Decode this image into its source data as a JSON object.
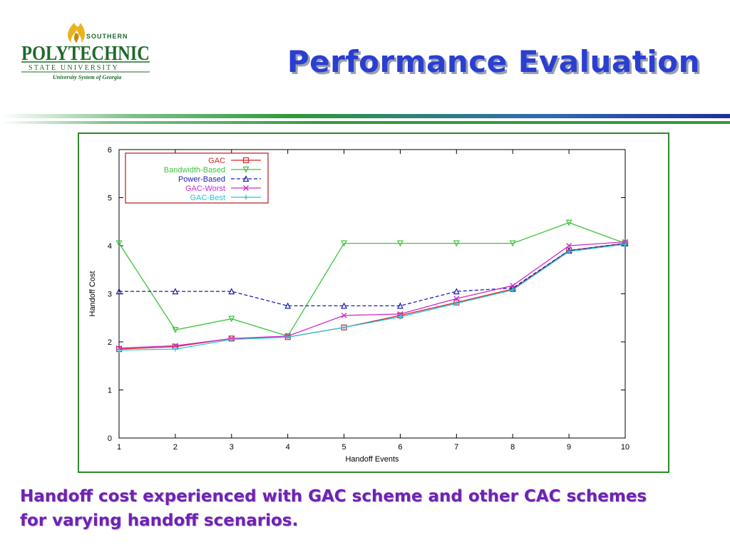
{
  "logo": {
    "southern": "SOUTHERN",
    "polytechnic": "POLYTECHNIC",
    "state_university": "STATE UNIVERSITY",
    "system": "University System of Georgia",
    "colors": {
      "green": "#1e6a2a",
      "flame": "#e9b21f"
    }
  },
  "slide": {
    "title": "Performance Evaluation",
    "caption_line1": "Handoff cost experienced with GAC scheme and other CAC schemes",
    "caption_line2": "for varying handoff scenarios."
  },
  "chart_data": {
    "type": "line",
    "title": "",
    "xlabel": "Handoff Events",
    "ylabel": "Handoff Cost",
    "x": [
      1,
      2,
      3,
      4,
      5,
      6,
      7,
      8,
      9,
      10
    ],
    "xlim": [
      1,
      10
    ],
    "ylim": [
      0,
      6
    ],
    "xticks": [
      "1",
      "2",
      "3",
      "4",
      "5",
      "6",
      "7",
      "8",
      "9",
      "10"
    ],
    "yticks": [
      "0",
      "1",
      "2",
      "3",
      "4",
      "5",
      "6"
    ],
    "grid": false,
    "legend_position": "top-left",
    "series": [
      {
        "name": "GAC",
        "color": "#d8262a",
        "marker": "square",
        "dash": "solid",
        "values": [
          1.85,
          1.9,
          2.07,
          2.1,
          2.3,
          2.55,
          2.82,
          3.1,
          3.9,
          4.05
        ]
      },
      {
        "name": "Bandwidth-Based",
        "color": "#3cc43c",
        "marker": "triangle-down",
        "dash": "solid",
        "values": [
          4.05,
          2.25,
          2.48,
          2.12,
          4.05,
          4.05,
          4.05,
          4.05,
          4.48,
          4.05
        ]
      },
      {
        "name": "Power-Based",
        "color": "#1c1fa8",
        "marker": "triangle-up",
        "dash": "dashed",
        "values": [
          3.05,
          3.05,
          3.05,
          2.75,
          2.75,
          2.75,
          3.05,
          3.12,
          3.9,
          4.05
        ]
      },
      {
        "name": "GAC-Worst",
        "color": "#cc2ccc",
        "marker": "x",
        "dash": "solid",
        "values": [
          1.87,
          1.92,
          2.07,
          2.12,
          2.55,
          2.58,
          2.9,
          3.17,
          4.0,
          4.08
        ]
      },
      {
        "name": "GAC-Best",
        "color": "#22c8d8",
        "marker": "plus",
        "dash": "solid",
        "values": [
          1.83,
          1.85,
          2.05,
          2.1,
          2.3,
          2.52,
          2.8,
          3.08,
          3.88,
          4.03
        ]
      }
    ]
  }
}
